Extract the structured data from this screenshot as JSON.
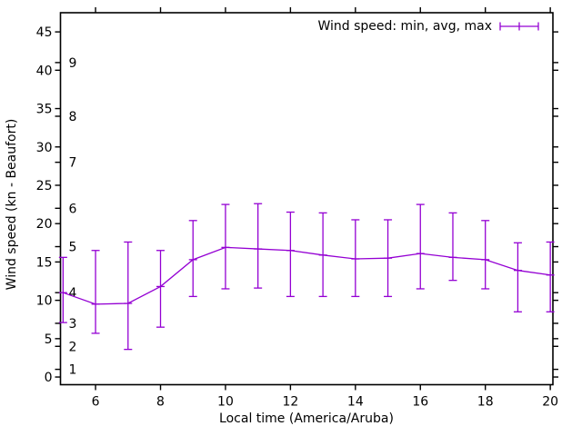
{
  "chart_data": {
    "type": "line",
    "subtype": "errorbars",
    "title": "",
    "xlabel": "Local time (America/Aruba)",
    "ylabel": "Wind speed (kn - Beaufort)",
    "legend_label": "Wind speed: min, avg, max",
    "legend_position": "top-right-inside",
    "grid": false,
    "line_color": "#9400d3",
    "axis_color": "#000000",
    "background_color": "#ffffff",
    "x": [
      5,
      6,
      7,
      8,
      9,
      10,
      11,
      12,
      13,
      14,
      15,
      16,
      17,
      18,
      19,
      20
    ],
    "series": [
      {
        "name": "min",
        "values": [
          7.1,
          5.7,
          3.6,
          6.5,
          10.5,
          11.5,
          11.6,
          10.5,
          10.5,
          10.5,
          10.5,
          11.5,
          12.6,
          11.5,
          8.5,
          8.5
        ]
      },
      {
        "name": "avg",
        "values": [
          11.0,
          9.5,
          9.6,
          11.8,
          15.3,
          16.9,
          16.7,
          16.5,
          15.9,
          15.4,
          15.5,
          16.1,
          15.6,
          15.3,
          13.9,
          13.3
        ]
      },
      {
        "name": "max",
        "values": [
          15.6,
          16.5,
          17.6,
          16.5,
          20.4,
          22.5,
          22.6,
          21.5,
          21.4,
          20.5,
          20.5,
          22.5,
          21.4,
          20.4,
          17.5,
          17.6
        ]
      }
    ],
    "x_ticks": [
      6,
      8,
      10,
      12,
      14,
      16,
      18,
      20
    ],
    "y_ticks_kn": [
      0,
      5,
      10,
      15,
      20,
      25,
      30,
      35,
      40,
      45
    ],
    "beaufort_scale": [
      {
        "label": "1",
        "kn": 1
      },
      {
        "label": "2",
        "kn": 4
      },
      {
        "label": "3",
        "kn": 7
      },
      {
        "label": "4",
        "kn": 11
      },
      {
        "label": "5",
        "kn": 17
      },
      {
        "label": "6",
        "kn": 22
      },
      {
        "label": "7",
        "kn": 28
      },
      {
        "label": "8",
        "kn": 34
      },
      {
        "label": "9",
        "kn": 41
      }
    ],
    "xlim": [
      4.92,
      20.08
    ],
    "ylim": [
      -1,
      47.5
    ]
  }
}
